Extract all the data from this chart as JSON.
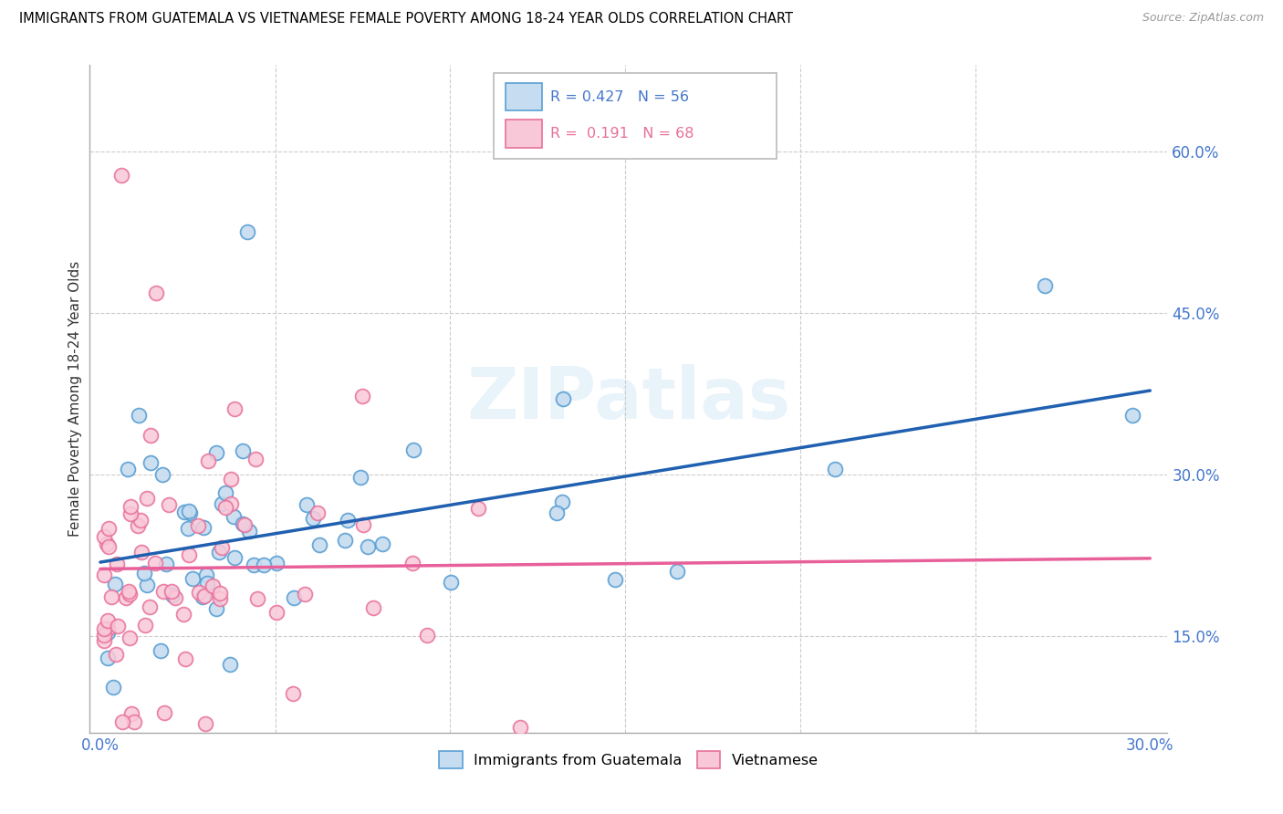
{
  "title": "IMMIGRANTS FROM GUATEMALA VS VIETNAMESE FEMALE POVERTY AMONG 18-24 YEAR OLDS CORRELATION CHART",
  "source": "Source: ZipAtlas.com",
  "ylabel": "Female Poverty Among 18-24 Year Olds",
  "ytick_vals": [
    0.15,
    0.3,
    0.45,
    0.6
  ],
  "ytick_labels": [
    "15.0%",
    "30.0%",
    "45.0%",
    "60.0%"
  ],
  "xlim": [
    -0.003,
    0.305
  ],
  "ylim": [
    0.06,
    0.68
  ],
  "watermark": "ZIPatlas",
  "blue_face": "#c6dcf0",
  "blue_edge": "#5a9fd4",
  "pink_face": "#f9c8d8",
  "pink_edge": "#e8709a",
  "blue_line": "#2060b0",
  "pink_line": "#e8609a",
  "tick_color": "#4477cc",
  "legend_label1": "R = 0.427   N = 56",
  "legend_label2": "R =  0.191   N = 68",
  "bottom_label1": "Immigrants from Guatemala",
  "bottom_label2": "Vietnamese"
}
